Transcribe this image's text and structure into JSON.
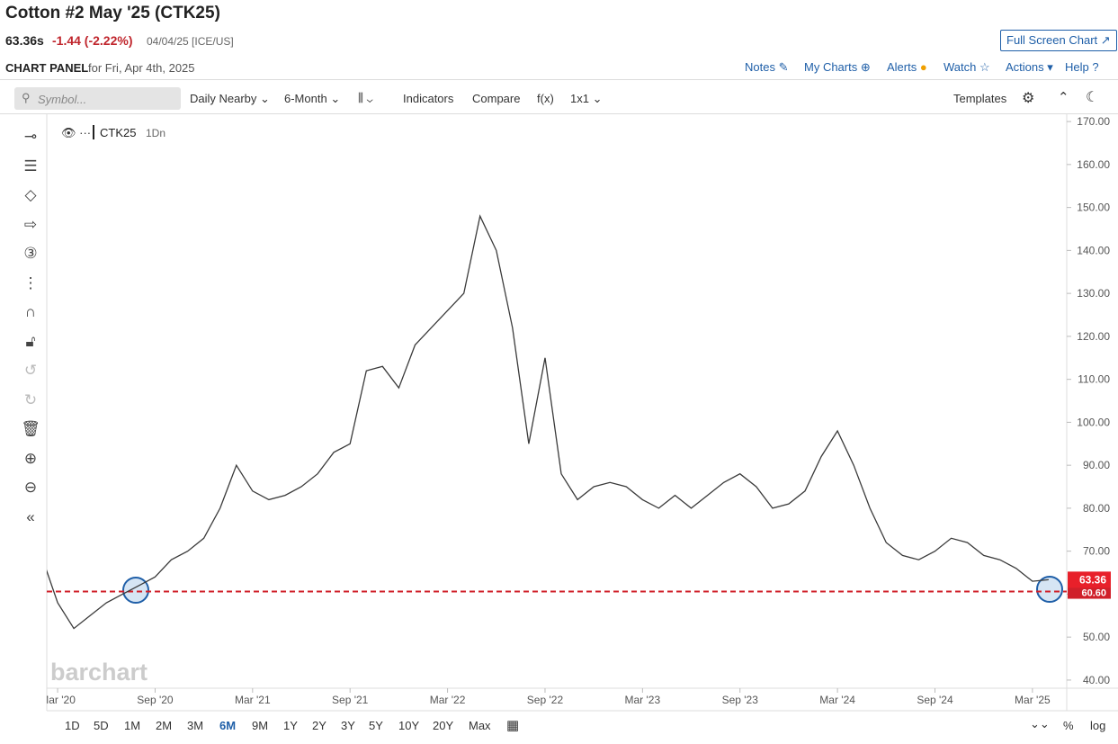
{
  "header": {
    "title": "Cotton #2 May '25 (CTK25)",
    "price": "63.36s",
    "change": "-1.44 (-2.22%)",
    "date": "04/04/25 [ICE/US]",
    "full_screen": "Full Screen Chart",
    "panel_label": "CHART PANEL",
    "panel_date": "for Fri, Apr 4th, 2025",
    "links": [
      "Notes",
      "My Charts",
      "Alerts",
      "Watch",
      "Actions",
      "Help"
    ]
  },
  "toolbar": {
    "symbol_placeholder": "Symbol...",
    "items": [
      "Daily Nearby",
      "6-Month",
      "Indicators",
      "Compare",
      "f(x)",
      "1x1"
    ],
    "templates": "Templates"
  },
  "chart_data": {
    "type": "line",
    "legend": "CTK25",
    "interval": "1Dn",
    "watermark": "barchart",
    "series": [
      {
        "name": "CTK25",
        "color": "#3a3a3a",
        "x": [
          "2020-02",
          "2020-03",
          "2020-04",
          "2020-05",
          "2020-06",
          "2020-07",
          "2020-08",
          "2020-09",
          "2020-10",
          "2020-11",
          "2020-12",
          "2021-01",
          "2021-02",
          "2021-03",
          "2021-04",
          "2021-05",
          "2021-06",
          "2021-07",
          "2021-08",
          "2021-09",
          "2021-10",
          "2021-11",
          "2021-12",
          "2022-01",
          "2022-02",
          "2022-03",
          "2022-04",
          "2022-05",
          "2022-06",
          "2022-07",
          "2022-08",
          "2022-09",
          "2022-10",
          "2022-11",
          "2022-12",
          "2023-01",
          "2023-02",
          "2023-03",
          "2023-04",
          "2023-05",
          "2023-06",
          "2023-07",
          "2023-08",
          "2023-09",
          "2023-10",
          "2023-11",
          "2023-12",
          "2024-01",
          "2024-02",
          "2024-03",
          "2024-04",
          "2024-05",
          "2024-06",
          "2024-07",
          "2024-08",
          "2024-09",
          "2024-10",
          "2024-11",
          "2024-12",
          "2025-01",
          "2025-02",
          "2025-03",
          "2025-04"
        ],
        "values": [
          69,
          58,
          52,
          55,
          58,
          60,
          62,
          64,
          68,
          70,
          73,
          80,
          90,
          84,
          82,
          83,
          85,
          88,
          93,
          95,
          112,
          113,
          108,
          118,
          122,
          126,
          130,
          148,
          140,
          122,
          95,
          115,
          88,
          82,
          85,
          86,
          85,
          82,
          80,
          83,
          80,
          83,
          86,
          88,
          85,
          80,
          81,
          84,
          92,
          98,
          90,
          80,
          72,
          69,
          68,
          70,
          73,
          72,
          69,
          68,
          66,
          63,
          63.36
        ]
      }
    ],
    "last_price": {
      "value": 63.36,
      "label": "63.36",
      "color": "#e8202a"
    },
    "reference_line": {
      "value": 60.6,
      "label": "60.60",
      "color": "#d0202a"
    },
    "xlim": [
      "2020-02",
      "2025-05"
    ],
    "xticks": [
      {
        "value": "2020-03",
        "label": "Mar '20"
      },
      {
        "value": "2020-09",
        "label": "Sep '20"
      },
      {
        "value": "2021-03",
        "label": "Mar '21"
      },
      {
        "value": "2021-09",
        "label": "Sep '21"
      },
      {
        "value": "2022-03",
        "label": "Mar '22"
      },
      {
        "value": "2022-09",
        "label": "Sep '22"
      },
      {
        "value": "2023-03",
        "label": "Mar '23"
      },
      {
        "value": "2023-09",
        "label": "Sep '23"
      },
      {
        "value": "2024-03",
        "label": "Mar '24"
      },
      {
        "value": "2024-09",
        "label": "Sep '24"
      },
      {
        "value": "2025-03",
        "label": "Mar '25"
      }
    ],
    "ylim": [
      38.1,
      171.7
    ],
    "yticks": [
      {
        "value": 40,
        "label": "40.00"
      },
      {
        "value": 50,
        "label": "50.00"
      },
      {
        "value": 60,
        "label": "60.00"
      },
      {
        "value": 70,
        "label": "70.00"
      },
      {
        "value": 80,
        "label": "80.00"
      },
      {
        "value": 90,
        "label": "90.00"
      },
      {
        "value": 100,
        "label": "100.00"
      },
      {
        "value": 110,
        "label": "110.00"
      },
      {
        "value": 120,
        "label": "120.00"
      },
      {
        "value": 130,
        "label": "130.00"
      },
      {
        "value": 140,
        "label": "140.00"
      },
      {
        "value": 150,
        "label": "150.00"
      },
      {
        "value": 160,
        "label": "160.00"
      },
      {
        "value": 170,
        "label": "170.00"
      }
    ],
    "ranges": [
      "1D",
      "5D",
      "1M",
      "2M",
      "3M",
      "6M",
      "9M",
      "1Y",
      "2Y",
      "3Y",
      "5Y",
      "10Y",
      "20Y",
      "Max"
    ],
    "selected_range": "6M",
    "scale_options": [
      "%",
      "log"
    ]
  }
}
